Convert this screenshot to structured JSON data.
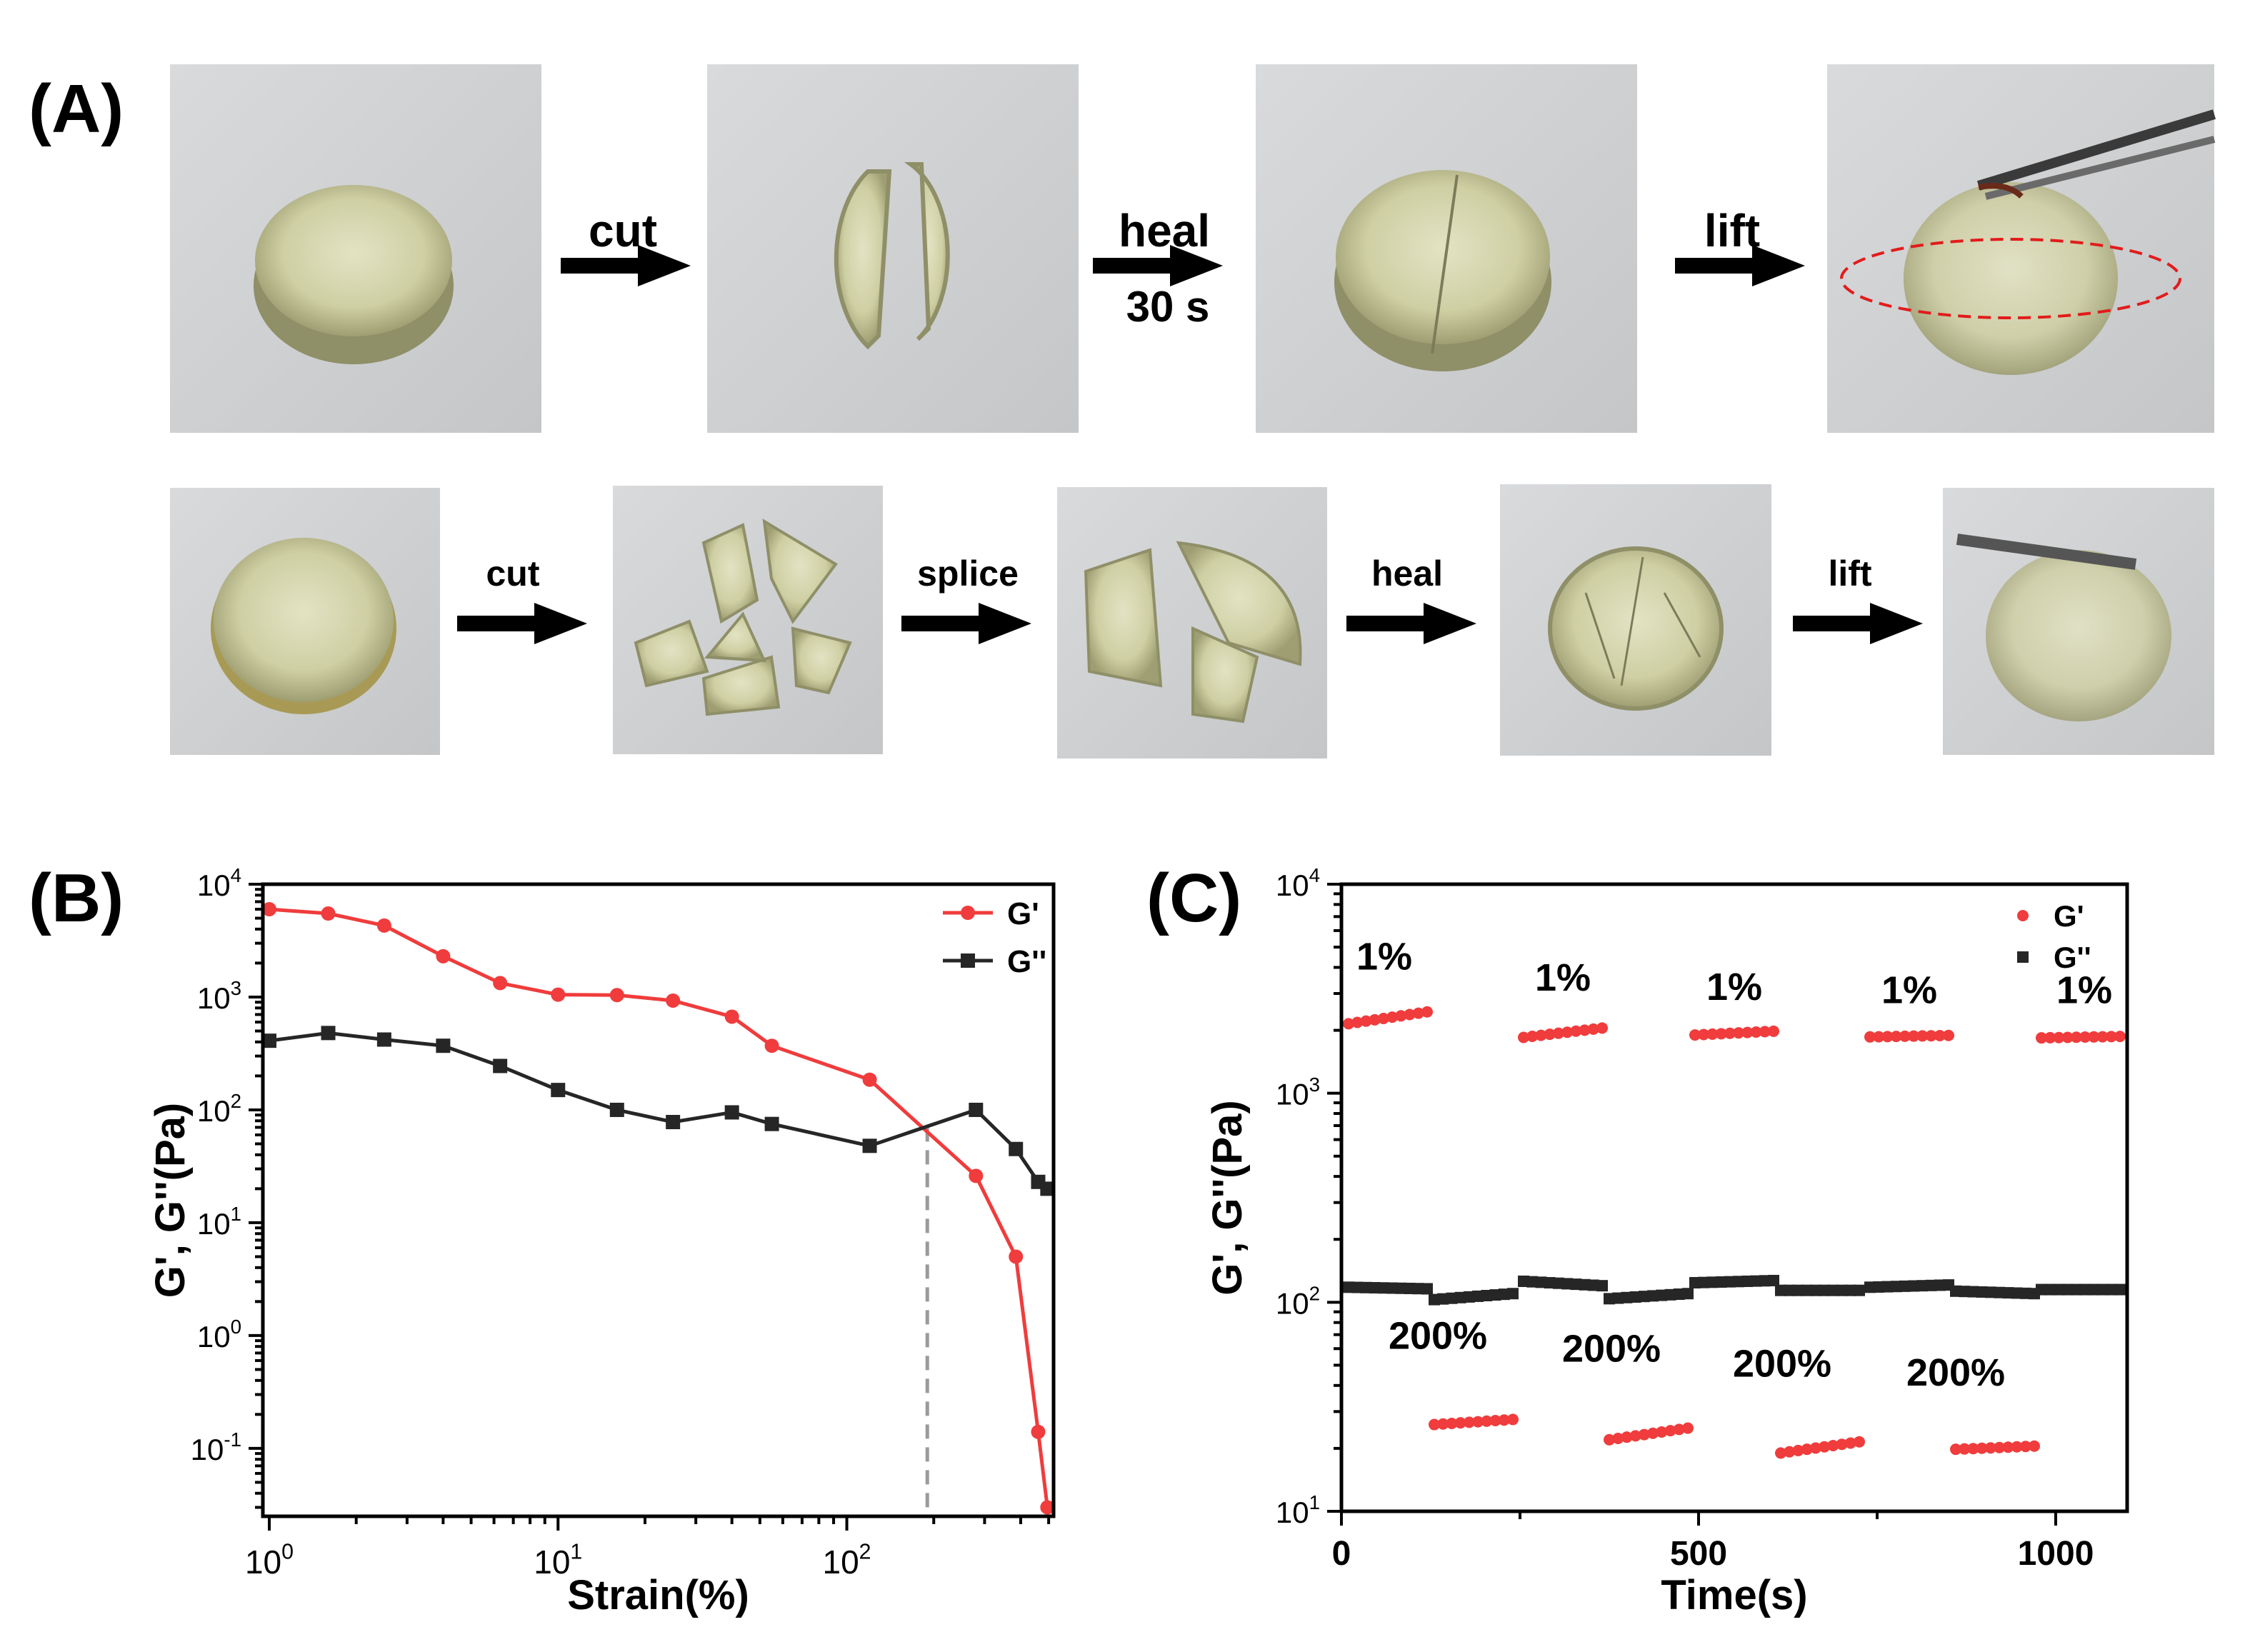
{
  "panel_a": {
    "label": "(A)",
    "row1": {
      "steps": [
        {
          "label": "cut",
          "sub": ""
        },
        {
          "label": "heal",
          "sub": "30 s"
        },
        {
          "label": "lift",
          "sub": ""
        }
      ]
    },
    "row2": {
      "steps": [
        {
          "label": "cut"
        },
        {
          "label": "splice"
        },
        {
          "label": "heal"
        },
        {
          "label": "lift"
        }
      ]
    }
  },
  "colors": {
    "red": "#f03c3c",
    "dark": "#262626",
    "dashed_gray": "#9a9a9a",
    "ellipse_red": "#e21b1b"
  },
  "chart_data": [
    {
      "panel_label": "(B)",
      "type": "line",
      "xscale": "log",
      "yscale": "log",
      "xlim": [
        0.95,
        520
      ],
      "ylim": [
        0.025,
        10000
      ],
      "xlabel": "Strain(%)",
      "ylabel": "G', G''(Pa)",
      "x_ticks": [
        {
          "value": 1,
          "base": "10",
          "exp": "0"
        },
        {
          "value": 10,
          "base": "10",
          "exp": "1"
        },
        {
          "value": 100,
          "base": "10",
          "exp": "2"
        }
      ],
      "y_ticks": [
        {
          "value": 0.1,
          "base": "10",
          "exp": "-1"
        },
        {
          "value": 1,
          "base": "10",
          "exp": "0"
        },
        {
          "value": 10,
          "base": "10",
          "exp": "1"
        },
        {
          "value": 100,
          "base": "10",
          "exp": "2"
        },
        {
          "value": 1000,
          "base": "10",
          "exp": "3"
        },
        {
          "value": 10000,
          "base": "10",
          "exp": "4"
        }
      ],
      "crossover_strain": 190,
      "legend": {
        "position": "top-right",
        "entries": [
          "G'",
          "G''"
        ]
      },
      "series": [
        {
          "name": "G'",
          "marker": "circle",
          "color": "#f03c3c",
          "x": [
            1,
            1.6,
            2.5,
            4,
            6.3,
            10,
            16,
            25,
            40,
            55,
            120,
            280,
            385,
            460,
            495
          ],
          "values": [
            6000,
            5500,
            4300,
            2300,
            1330,
            1050,
            1040,
            930,
            670,
            370,
            185,
            26,
            5,
            0.14,
            0.03
          ]
        },
        {
          "name": "G''",
          "marker": "square",
          "color": "#262626",
          "x": [
            1,
            1.6,
            2.5,
            4,
            6.3,
            10,
            16,
            25,
            40,
            55,
            120,
            280,
            385,
            460,
            495
          ],
          "values": [
            410,
            480,
            420,
            370,
            245,
            150,
            100,
            78,
            95,
            75,
            48,
            100,
            45,
            23,
            20
          ]
        }
      ]
    },
    {
      "panel_label": "(C)",
      "type": "scatter",
      "xscale": "linear",
      "yscale": "log",
      "xlim": [
        0,
        1100
      ],
      "ylim": [
        10,
        10000
      ],
      "xlabel": "Time(s)",
      "ylabel": "G', G''(Pa)",
      "x_ticks": [
        {
          "value": 0,
          "label": "0"
        },
        {
          "value": 500,
          "label": "500"
        },
        {
          "value": 1000,
          "label": "1000"
        }
      ],
      "y_ticks": [
        {
          "value": 10,
          "base": "10",
          "exp": "1"
        },
        {
          "value": 100,
          "base": "10",
          "exp": "2"
        },
        {
          "value": 1000,
          "base": "10",
          "exp": "3"
        },
        {
          "value": 10000,
          "base": "10",
          "exp": "4"
        }
      ],
      "legend": {
        "position": "top-right",
        "entries": [
          "G'",
          "G''"
        ]
      },
      "annotations": [
        {
          "text": "1%",
          "x": 60,
          "y": 3900
        },
        {
          "text": "1%",
          "x": 310,
          "y": 3100
        },
        {
          "text": "1%",
          "x": 550,
          "y": 2800
        },
        {
          "text": "1%",
          "x": 795,
          "y": 2700
        },
        {
          "text": "1%",
          "x": 1040,
          "y": 2700
        },
        {
          "text": "200%",
          "x": 135,
          "y": 60
        },
        {
          "text": "200%",
          "x": 378,
          "y": 52
        },
        {
          "text": "200%",
          "x": 617,
          "y": 44
        },
        {
          "text": "200%",
          "x": 860,
          "y": 40
        }
      ],
      "g_prime_segments": [
        {
          "strain": "1%",
          "t_start": 10,
          "t_end": 120,
          "v_start": 2150,
          "v_end": 2450
        },
        {
          "strain": "200%",
          "t_start": 130,
          "t_end": 240,
          "v_start": 26,
          "v_end": 27.5
        },
        {
          "strain": "1%",
          "t_start": 255,
          "t_end": 365,
          "v_start": 1850,
          "v_end": 2050
        },
        {
          "strain": "200%",
          "t_start": 375,
          "t_end": 485,
          "v_start": 22,
          "v_end": 25
        },
        {
          "strain": "1%",
          "t_start": 495,
          "t_end": 605,
          "v_start": 1900,
          "v_end": 1980
        },
        {
          "strain": "200%",
          "t_start": 615,
          "t_end": 725,
          "v_start": 19,
          "v_end": 21.5
        },
        {
          "strain": "1%",
          "t_start": 740,
          "t_end": 850,
          "v_start": 1860,
          "v_end": 1890
        },
        {
          "strain": "200%",
          "t_start": 860,
          "t_end": 970,
          "v_start": 19.8,
          "v_end": 20.5
        },
        {
          "strain": "1%",
          "t_start": 980,
          "t_end": 1090,
          "v_start": 1840,
          "v_end": 1870
        }
      ],
      "g_double_prime_segments": [
        {
          "t_start": 10,
          "t_end": 120,
          "v_start": 118,
          "v_end": 116
        },
        {
          "t_start": 130,
          "t_end": 240,
          "v_start": 103,
          "v_end": 110
        },
        {
          "t_start": 255,
          "t_end": 365,
          "v_start": 126,
          "v_end": 120
        },
        {
          "t_start": 375,
          "t_end": 485,
          "v_start": 104,
          "v_end": 110
        },
        {
          "t_start": 495,
          "t_end": 605,
          "v_start": 124,
          "v_end": 127
        },
        {
          "t_start": 615,
          "t_end": 725,
          "v_start": 114,
          "v_end": 114
        },
        {
          "t_start": 740,
          "t_end": 850,
          "v_start": 118,
          "v_end": 121
        },
        {
          "t_start": 860,
          "t_end": 970,
          "v_start": 113,
          "v_end": 110
        },
        {
          "t_start": 980,
          "t_end": 1090,
          "v_start": 115,
          "v_end": 115
        }
      ]
    }
  ]
}
